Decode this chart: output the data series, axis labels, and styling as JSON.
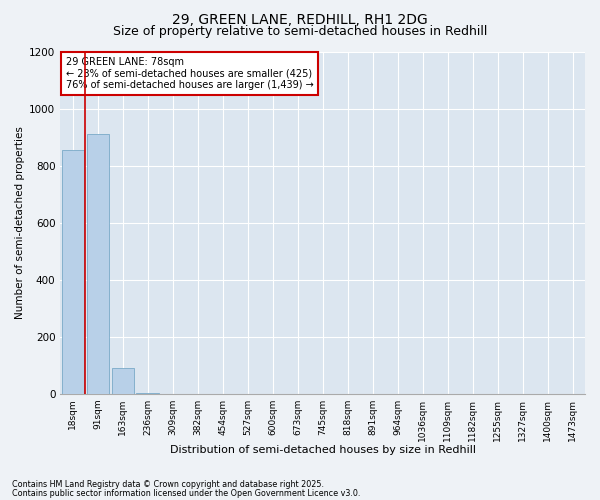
{
  "title1": "29, GREEN LANE, REDHILL, RH1 2DG",
  "title2": "Size of property relative to semi-detached houses in Redhill",
  "xlabel": "Distribution of semi-detached houses by size in Redhill",
  "ylabel": "Number of semi-detached properties",
  "bar_color": "#b8d0e8",
  "bar_edge_color": "#7aaac8",
  "categories": [
    "18sqm",
    "91sqm",
    "163sqm",
    "236sqm",
    "309sqm",
    "382sqm",
    "454sqm",
    "527sqm",
    "600sqm",
    "673sqm",
    "745sqm",
    "818sqm",
    "891sqm",
    "964sqm",
    "1036sqm",
    "1109sqm",
    "1182sqm",
    "1255sqm",
    "1327sqm",
    "1400sqm",
    "1473sqm"
  ],
  "values": [
    855,
    910,
    90,
    3,
    0,
    0,
    0,
    0,
    0,
    0,
    0,
    0,
    0,
    0,
    0,
    0,
    0,
    0,
    0,
    0,
    0
  ],
  "ylim": [
    0,
    1200
  ],
  "yticks": [
    0,
    200,
    400,
    600,
    800,
    1000,
    1200
  ],
  "vline_x": 0.5,
  "annotation_text": "29 GREEN LANE: 78sqm\n← 23% of semi-detached houses are smaller (425)\n76% of semi-detached houses are larger (1,439) →",
  "annotation_box_color": "#cc0000",
  "footer1": "Contains HM Land Registry data © Crown copyright and database right 2025.",
  "footer2": "Contains public sector information licensed under the Open Government Licence v3.0.",
  "bg_color": "#eef2f6",
  "plot_bg_color": "#dce6f0",
  "grid_color": "#ffffff",
  "title_fontsize": 10,
  "subtitle_fontsize": 9,
  "bar_width": 0.9
}
